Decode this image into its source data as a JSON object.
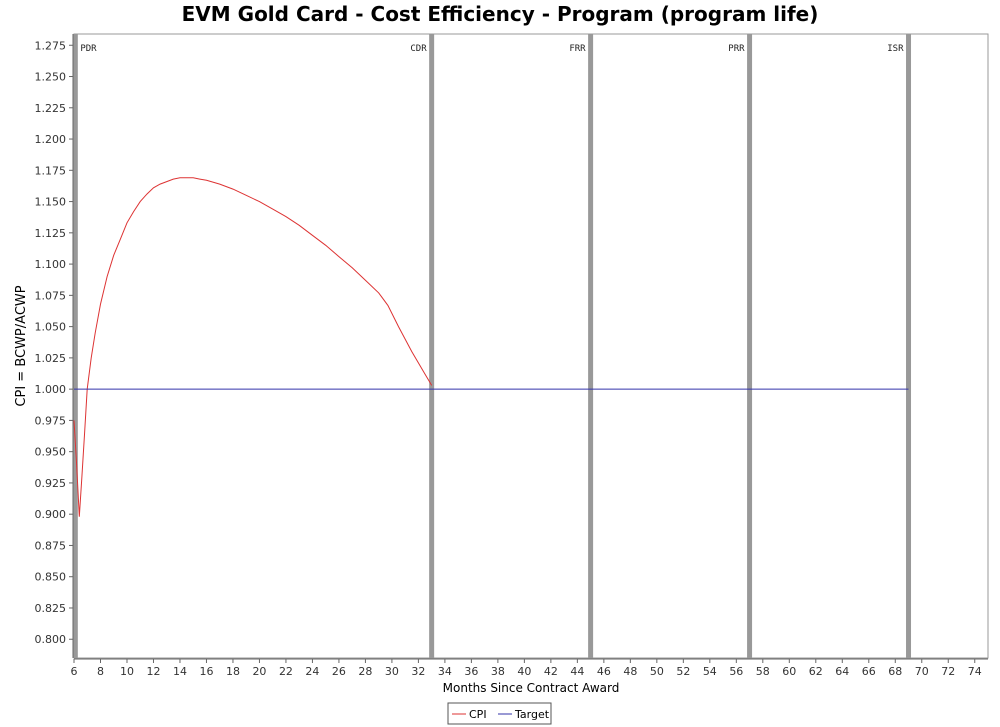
{
  "chart_data": {
    "type": "line",
    "title": "EVM Gold Card - Cost Efficiency - Program (program life)",
    "xlabel": "Months Since Contract Award",
    "ylabel": "CPI = BCWP/ACWP",
    "xlim": [
      6,
      75
    ],
    "ylim": [
      0.785,
      1.284
    ],
    "x_ticks": [
      6,
      8,
      10,
      12,
      14,
      16,
      18,
      20,
      22,
      24,
      26,
      28,
      30,
      32,
      34,
      36,
      38,
      40,
      42,
      44,
      46,
      48,
      50,
      52,
      54,
      56,
      58,
      60,
      62,
      64,
      66,
      68,
      70,
      72,
      74
    ],
    "y_ticks": [
      0.8,
      0.825,
      0.85,
      0.875,
      0.9,
      0.925,
      0.95,
      0.975,
      1.0,
      1.025,
      1.05,
      1.075,
      1.1,
      1.125,
      1.15,
      1.175,
      1.2,
      1.225,
      1.25,
      1.275
    ],
    "grid": false,
    "legend": "bottom-center",
    "milestones": [
      {
        "label": "PDR",
        "x": 6.1
      },
      {
        "label": "CDR",
        "x": 33
      },
      {
        "label": "FRR",
        "x": 45
      },
      {
        "label": "PRR",
        "x": 57
      },
      {
        "label": "ISR",
        "x": 69
      }
    ],
    "series": [
      {
        "name": "CPI",
        "color": "#dd3333",
        "x": [
          6.0,
          6.2,
          6.4,
          6.6,
          6.8,
          7.0,
          7.3,
          7.6,
          8.0,
          8.5,
          9.0,
          9.5,
          10.0,
          10.5,
          11.0,
          11.5,
          12.0,
          12.5,
          13.0,
          13.5,
          14.0,
          14.5,
          15.0,
          15.5,
          16.0,
          17.0,
          18.0,
          19.0,
          20.0,
          21.0,
          22.0,
          23.0,
          24.0,
          25.0,
          26.0,
          27.0,
          28.0,
          29.0,
          29.7,
          30.5,
          31.5,
          32.5,
          33.0
        ],
        "y": [
          0.975,
          0.94,
          0.898,
          0.93,
          0.965,
          1.0,
          1.025,
          1.045,
          1.068,
          1.09,
          1.107,
          1.12,
          1.133,
          1.142,
          1.15,
          1.156,
          1.161,
          1.164,
          1.166,
          1.168,
          1.169,
          1.169,
          1.169,
          1.168,
          1.167,
          1.164,
          1.16,
          1.155,
          1.15,
          1.144,
          1.138,
          1.131,
          1.123,
          1.115,
          1.106,
          1.097,
          1.087,
          1.077,
          1.067,
          1.05,
          1.03,
          1.012,
          1.003
        ]
      },
      {
        "name": "Target",
        "color": "#3333aa",
        "x": [
          6.0,
          69.0
        ],
        "y": [
          1.0,
          1.0
        ]
      }
    ]
  }
}
